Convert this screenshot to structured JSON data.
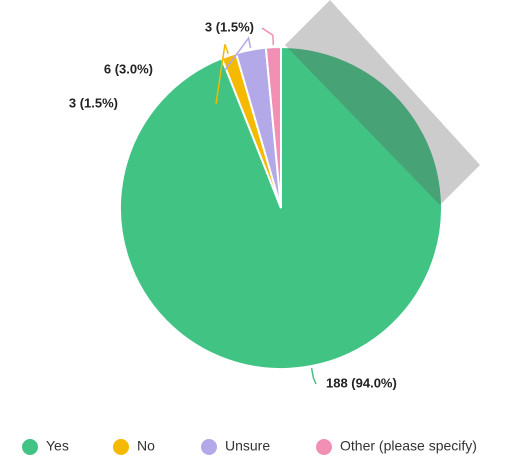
{
  "chart_data": {
    "type": "pie",
    "categories": [
      "Yes",
      "No",
      "Unsure",
      "Other (please specify)"
    ],
    "values": [
      188,
      3,
      6,
      3
    ],
    "value_labels": [
      "188 (94.0%)",
      "3 (1.5%)",
      "6 (3.0%)",
      "3 (1.5%)"
    ],
    "colors": [
      "#41c383",
      "#f5b900",
      "#b3a8e8",
      "#f28fb5"
    ],
    "legend": "bottom"
  }
}
